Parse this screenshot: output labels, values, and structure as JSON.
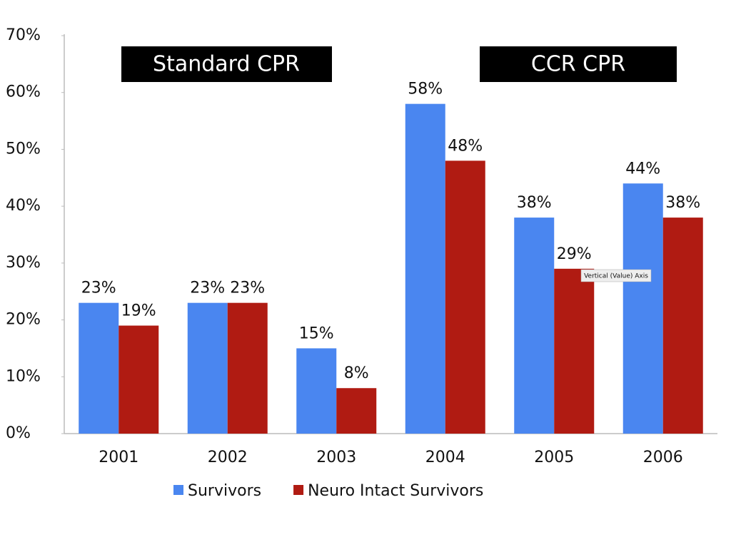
{
  "chart_data": {
    "type": "bar",
    "annotations": [
      "Standard CPR",
      "CCR CPR",
      "Vertical (Value) Axis"
    ],
    "categories": [
      "2001",
      "2002",
      "2003",
      "2004",
      "2005",
      "2006"
    ],
    "series": [
      {
        "name": "Survivors",
        "color": "#4a86f0",
        "values": [
          23,
          23,
          15,
          58,
          38,
          44
        ],
        "value_labels": [
          "23%",
          "23%",
          "15%",
          "58%",
          "38%",
          "44%"
        ]
      },
      {
        "name": "Neuro Intact Survivors",
        "color": "#b01b12",
        "values": [
          19,
          23,
          8,
          48,
          29,
          38
        ],
        "value_labels": [
          "19%",
          "23%",
          "8%",
          "48%",
          "29%",
          "38%"
        ]
      }
    ],
    "ylim": [
      0,
      70
    ],
    "yticks": [
      {
        "value": 0,
        "label": "0%"
      },
      {
        "value": 10,
        "label": "10%"
      },
      {
        "value": 20,
        "label": "20%"
      },
      {
        "value": 30,
        "label": "30%"
      },
      {
        "value": 40,
        "label": "40%"
      },
      {
        "value": 50,
        "label": "50%"
      },
      {
        "value": 60,
        "label": "60%"
      },
      {
        "value": 70,
        "label": "70%"
      }
    ],
    "grid": false
  }
}
